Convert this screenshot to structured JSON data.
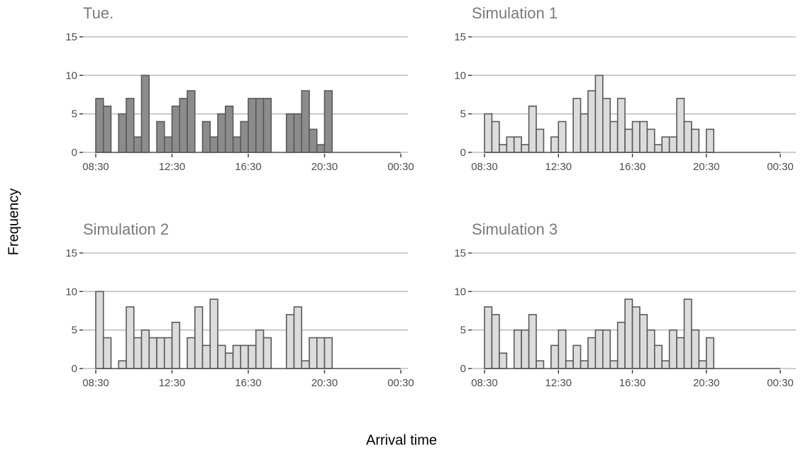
{
  "figure": {
    "xlabel": "Arrival time",
    "ylabel": "Frequency"
  },
  "colors": {
    "observed_fill": "#8c8c8c",
    "simulated_fill": "#dcdcdc",
    "bar_stroke": "#595959",
    "gridline": "#bdbdbd",
    "panel_title": "#7a7a7a",
    "tick_text": "#4d4d4d"
  },
  "chart_data": [
    {
      "type": "bar",
      "title": "Tue.",
      "style": "observed",
      "xticks": [
        "08:30",
        "12:30",
        "16:30",
        "20:30",
        "00:30"
      ],
      "yticks": [
        0,
        5,
        10,
        15
      ],
      "ylim": [
        0,
        15
      ],
      "bins": 40,
      "values": [
        7,
        6,
        0,
        5,
        7,
        2,
        10,
        0,
        4,
        2,
        6,
        7,
        8,
        0,
        4,
        2,
        5,
        6,
        2,
        4,
        7,
        7,
        7,
        0,
        0,
        5,
        5,
        8,
        3,
        1,
        8,
        0,
        0,
        0,
        0,
        0,
        0,
        0,
        0,
        0
      ]
    },
    {
      "type": "bar",
      "title": "Simulation 1",
      "style": "simulated",
      "xticks": [
        "08:30",
        "12:30",
        "16:30",
        "20:30",
        "00:30"
      ],
      "yticks": [
        0,
        5,
        10,
        15
      ],
      "ylim": [
        0,
        15
      ],
      "bins": 40,
      "values": [
        5,
        4,
        1,
        2,
        2,
        1,
        6,
        3,
        0,
        2,
        4,
        0,
        7,
        5,
        8,
        10,
        7,
        4,
        7,
        3,
        4,
        4,
        3,
        1,
        2,
        2,
        7,
        4,
        3,
        0,
        3,
        0,
        0,
        0,
        0,
        0,
        0,
        0,
        0,
        0
      ]
    },
    {
      "type": "bar",
      "title": "Simulation 2",
      "style": "simulated",
      "xticks": [
        "08:30",
        "12:30",
        "16:30",
        "20:30",
        "00:30"
      ],
      "yticks": [
        0,
        5,
        10,
        15
      ],
      "ylim": [
        0,
        15
      ],
      "bins": 40,
      "values": [
        10,
        4,
        0,
        1,
        8,
        4,
        5,
        4,
        4,
        4,
        6,
        0,
        4,
        8,
        3,
        9,
        3,
        2,
        3,
        3,
        3,
        5,
        4,
        0,
        0,
        7,
        8,
        1,
        4,
        4,
        4,
        0,
        0,
        0,
        0,
        0,
        0,
        0,
        0,
        0
      ]
    },
    {
      "type": "bar",
      "title": "Simulation 3",
      "style": "simulated",
      "xticks": [
        "08:30",
        "12:30",
        "16:30",
        "20:30",
        "00:30"
      ],
      "yticks": [
        0,
        5,
        10,
        15
      ],
      "ylim": [
        0,
        15
      ],
      "bins": 40,
      "values": [
        8,
        7,
        2,
        0,
        5,
        5,
        7,
        1,
        0,
        3,
        5,
        1,
        3,
        1,
        4,
        5,
        5,
        1,
        6,
        9,
        8,
        7,
        5,
        3,
        1,
        5,
        4,
        9,
        5,
        1,
        4,
        0,
        0,
        0,
        0,
        0,
        0,
        0,
        0,
        0
      ]
    }
  ]
}
